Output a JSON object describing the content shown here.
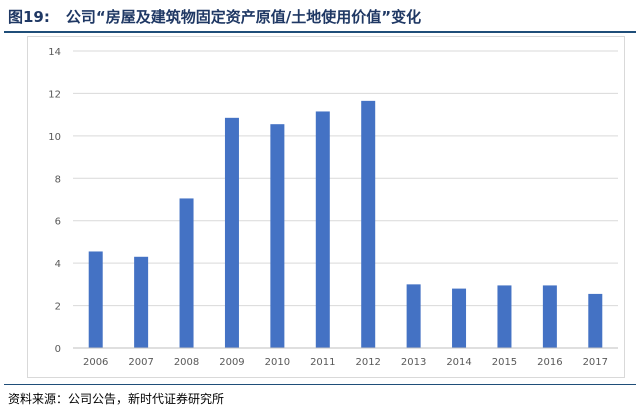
{
  "figure": {
    "number": "图19:",
    "title": "公司“房屋及建筑物固定资产原值/土地使用价值”变化"
  },
  "source": "资料来源：公司公告，新时代证券研究所",
  "chart_data": {
    "type": "bar",
    "categories": [
      "2006",
      "2007",
      "2008",
      "2009",
      "2010",
      "2011",
      "2012",
      "2013",
      "2014",
      "2015",
      "2016",
      "2017"
    ],
    "values": [
      4.55,
      4.3,
      7.05,
      10.85,
      10.55,
      11.15,
      11.65,
      3.0,
      2.8,
      2.95,
      2.95,
      2.55
    ],
    "ylim": [
      0,
      14
    ],
    "yticks": [
      "0",
      "2",
      "4",
      "6",
      "8",
      "10",
      "12",
      "14"
    ],
    "grid": true,
    "bar_color": "#4472c4",
    "grid_color": "#d9d9d9"
  }
}
